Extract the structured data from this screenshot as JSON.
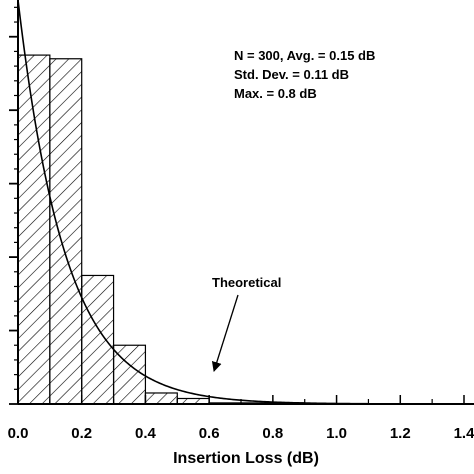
{
  "chart_data": {
    "type": "bar",
    "xlabel": "Insertion Loss (dB)",
    "ylabel": "",
    "xlim": [
      0,
      1.4
    ],
    "ylim": [
      0,
      110
    ],
    "x_ticks": [
      "0.0",
      "0.2",
      "0.4",
      "0.6",
      "0.8",
      "1.0",
      "1.2",
      "1.4"
    ],
    "x_tick_values": [
      0,
      0.2,
      0.4,
      0.6,
      0.8,
      1.0,
      1.2,
      1.4
    ],
    "bins": [
      {
        "x0": 0.0,
        "x1": 0.1,
        "value": 95
      },
      {
        "x0": 0.1,
        "x1": 0.2,
        "value": 94
      },
      {
        "x0": 0.2,
        "x1": 0.3,
        "value": 35
      },
      {
        "x0": 0.3,
        "x1": 0.4,
        "value": 16
      },
      {
        "x0": 0.4,
        "x1": 0.5,
        "value": 3
      },
      {
        "x0": 0.5,
        "x1": 0.6,
        "value": 1.5
      },
      {
        "x0": 0.6,
        "x1": 0.7,
        "value": 0.3
      },
      {
        "x0": 0.7,
        "x1": 0.8,
        "value": 0.3
      },
      {
        "x0": 0.8,
        "x1": 0.9,
        "value": 0.3
      }
    ],
    "theoretical_curve": {
      "label": "Theoretical",
      "peak": 110,
      "decay_per_dB": 6.67
    },
    "stats_lines": [
      "N = 300,  Avg. = 0.15 dB",
      "Std. Dev. = 0.11 dB",
      "Max. = 0.8 dB"
    ],
    "grid": false,
    "legend": "none"
  },
  "colors": {
    "ink": "#000000",
    "background": "#ffffff"
  }
}
